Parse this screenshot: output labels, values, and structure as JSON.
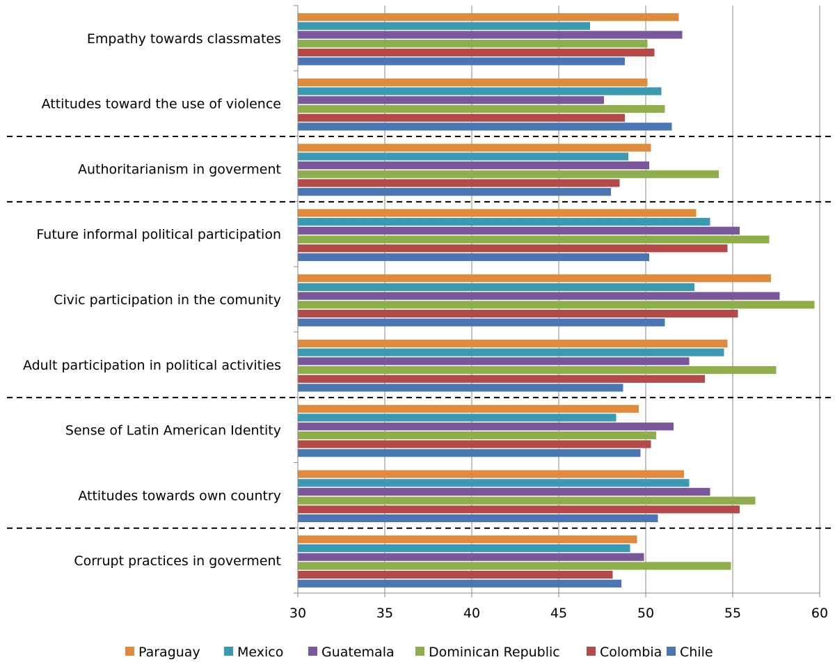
{
  "chart_data": {
    "type": "bar",
    "orientation": "horizontal",
    "title": "",
    "xlabel": "",
    "ylabel": "",
    "xlim": [
      30,
      60
    ],
    "x_ticks": [
      "30",
      "35",
      "40",
      "45",
      "50",
      "55",
      "60"
    ],
    "grid": "vertical major gridlines",
    "legend_position": "bottom",
    "categories": [
      "Empathy towards classmates",
      "Attitudes toward the use of violence",
      "Authoritarianism in goverment",
      "Future informal political participation",
      "Civic participation in the comunity",
      "Adult participation in political activities",
      "Sense of Latin American Identity",
      "Attitudes towards own country",
      "Corrupt practices in goverment"
    ],
    "group_separators_after": [
      1,
      2,
      5,
      7
    ],
    "series": [
      {
        "name": "Paraguay",
        "color": "#E08A3C",
        "values": [
          51.9,
          50.1,
          50.3,
          52.9,
          57.2,
          54.7,
          49.6,
          52.2,
          49.5
        ]
      },
      {
        "name": "Mexico",
        "color": "#3A9AB4",
        "values": [
          46.8,
          50.9,
          49.0,
          53.7,
          52.8,
          54.5,
          48.3,
          52.5,
          49.1
        ]
      },
      {
        "name": "Guatemala",
        "color": "#7A579A",
        "values": [
          52.1,
          47.6,
          50.2,
          55.4,
          57.7,
          52.5,
          51.6,
          53.7,
          49.9
        ]
      },
      {
        "name": "Dominican Republic",
        "color": "#8DAE4B",
        "values": [
          50.1,
          51.1,
          54.2,
          57.1,
          59.7,
          57.5,
          50.6,
          56.3,
          54.9
        ]
      },
      {
        "name": "Colombia",
        "color": "#B44A47",
        "values": [
          50.5,
          48.8,
          48.5,
          54.7,
          55.3,
          53.4,
          50.3,
          55.4,
          48.1
        ]
      },
      {
        "name": "Chile",
        "color": "#4A77B4",
        "values": [
          48.8,
          51.5,
          48.0,
          50.2,
          51.1,
          48.7,
          49.7,
          50.7,
          48.6
        ]
      }
    ],
    "legend_order": [
      "Paraguay",
      "Mexico",
      "Guatemala",
      "Dominican Republic",
      "Colombia",
      "Chile"
    ]
  }
}
